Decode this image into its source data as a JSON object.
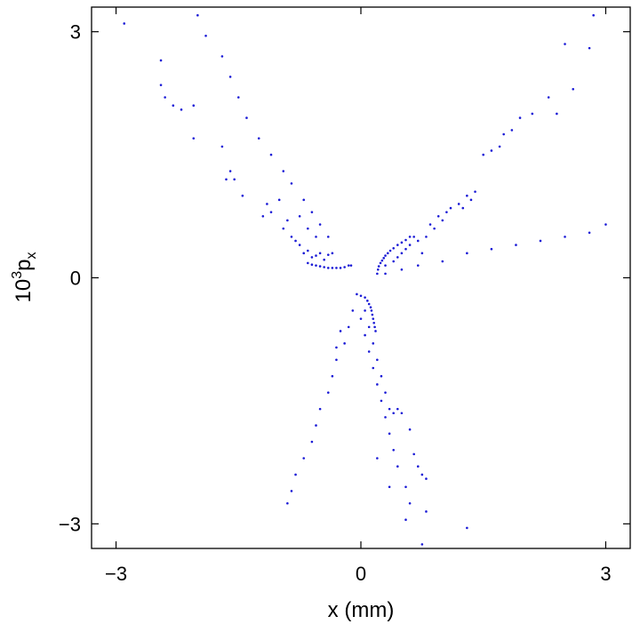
{
  "chart_data": {
    "type": "scatter",
    "xlabel": "x (mm)",
    "ylabel_parts": {
      "base": "10",
      "sup": "3",
      "main": "p",
      "sub": "x"
    },
    "xlim": [
      -3.3,
      3.3
    ],
    "ylim": [
      -3.3,
      3.3
    ],
    "xticks": [
      -3,
      0,
      3
    ],
    "yticks": [
      -3,
      0,
      3
    ],
    "xtick_labels": [
      "−3",
      "0",
      "3"
    ],
    "ytick_labels": [
      "−3",
      "0",
      "3"
    ],
    "grid": false,
    "legend": "none",
    "colors": {
      "points": "#1a1ad6",
      "frame": "#000000"
    },
    "series": [
      {
        "values_xy": [
          [
            -2.9,
            3.1
          ],
          [
            -2.0,
            3.2
          ],
          [
            -1.9,
            2.95
          ],
          [
            -1.7,
            2.7
          ],
          [
            -1.6,
            2.45
          ],
          [
            -1.5,
            2.2
          ],
          [
            -1.4,
            1.95
          ],
          [
            -1.25,
            1.7
          ],
          [
            -1.1,
            1.5
          ],
          [
            -0.95,
            1.3
          ],
          [
            -0.85,
            1.15
          ],
          [
            -0.7,
            0.95
          ],
          [
            -0.6,
            0.8
          ],
          [
            -0.5,
            0.65
          ],
          [
            -0.4,
            0.5
          ],
          [
            -2.45,
            2.65
          ],
          [
            -2.45,
            2.35
          ],
          [
            -2.4,
            2.2
          ],
          [
            -2.3,
            2.1
          ],
          [
            -2.2,
            2.05
          ],
          [
            -2.05,
            2.1
          ],
          [
            -2.05,
            1.7
          ],
          [
            -1.7,
            1.6
          ],
          [
            -1.6,
            1.3
          ],
          [
            -1.55,
            1.2
          ],
          [
            -1.65,
            1.2
          ],
          [
            -1.45,
            1.0
          ],
          [
            -1.15,
            0.9
          ],
          [
            -1.0,
            0.95
          ],
          [
            -1.2,
            0.75
          ],
          [
            -1.1,
            0.8
          ],
          [
            -0.9,
            0.7
          ],
          [
            -0.75,
            0.75
          ],
          [
            -0.65,
            0.6
          ],
          [
            -0.55,
            0.5
          ],
          [
            -0.95,
            0.6
          ],
          [
            -0.85,
            0.5
          ],
          [
            -0.75,
            0.4
          ],
          [
            -0.65,
            0.33
          ],
          [
            -0.55,
            0.27
          ],
          [
            -0.45,
            0.22
          ],
          [
            -0.8,
            0.45
          ],
          [
            -0.7,
            0.3
          ],
          [
            -0.6,
            0.25
          ],
          [
            -0.5,
            0.3
          ],
          [
            -0.4,
            0.28
          ],
          [
            -0.35,
            0.3
          ],
          [
            -0.65,
            0.18
          ],
          [
            -0.6,
            0.16
          ],
          [
            -0.55,
            0.15
          ],
          [
            -0.5,
            0.14
          ],
          [
            -0.45,
            0.13
          ],
          [
            -0.4,
            0.12
          ],
          [
            -0.35,
            0.12
          ],
          [
            -0.3,
            0.12
          ],
          [
            -0.25,
            0.12
          ],
          [
            -0.2,
            0.13
          ],
          [
            -0.15,
            0.15
          ],
          [
            -0.12,
            0.15
          ],
          [
            0.2,
            0.05
          ],
          [
            0.21,
            0.1
          ],
          [
            0.22,
            0.14
          ],
          [
            0.24,
            0.18
          ],
          [
            0.26,
            0.21
          ],
          [
            0.28,
            0.24
          ],
          [
            0.3,
            0.27
          ],
          [
            0.33,
            0.3
          ],
          [
            0.36,
            0.33
          ],
          [
            0.4,
            0.36
          ],
          [
            0.45,
            0.4
          ],
          [
            0.5,
            0.43
          ],
          [
            0.55,
            0.46
          ],
          [
            0.6,
            0.5
          ],
          [
            0.3,
            0.05
          ],
          [
            0.5,
            0.1
          ],
          [
            0.7,
            0.15
          ],
          [
            1.0,
            0.2
          ],
          [
            1.3,
            0.3
          ],
          [
            1.6,
            0.35
          ],
          [
            1.9,
            0.4
          ],
          [
            2.2,
            0.45
          ],
          [
            2.5,
            0.5
          ],
          [
            2.8,
            0.55
          ],
          [
            3.0,
            0.65
          ],
          [
            0.4,
            0.2
          ],
          [
            0.5,
            0.3
          ],
          [
            0.6,
            0.4
          ],
          [
            0.7,
            0.45
          ],
          [
            0.8,
            0.5
          ],
          [
            0.9,
            0.6
          ],
          [
            1.0,
            0.7
          ],
          [
            1.05,
            0.8
          ],
          [
            1.2,
            0.9
          ],
          [
            1.3,
            1.0
          ],
          [
            1.4,
            1.05
          ],
          [
            1.5,
            1.5
          ],
          [
            1.6,
            1.55
          ],
          [
            1.7,
            1.6
          ],
          [
            1.75,
            1.75
          ],
          [
            1.85,
            1.8
          ],
          [
            1.95,
            1.95
          ],
          [
            2.1,
            2.0
          ],
          [
            2.3,
            2.2
          ],
          [
            2.4,
            2.0
          ],
          [
            2.6,
            2.3
          ],
          [
            2.5,
            2.85
          ],
          [
            2.8,
            2.8
          ],
          [
            2.85,
            3.2
          ],
          [
            0.3,
            0.15
          ],
          [
            0.45,
            0.25
          ],
          [
            0.55,
            0.35
          ],
          [
            0.65,
            0.5
          ],
          [
            0.75,
            0.3
          ],
          [
            0.85,
            0.65
          ],
          [
            0.95,
            0.75
          ],
          [
            1.1,
            0.85
          ],
          [
            1.25,
            0.85
          ],
          [
            1.35,
            0.95
          ],
          [
            -0.05,
            -0.2
          ],
          [
            0.0,
            -0.22
          ],
          [
            0.05,
            -0.24
          ],
          [
            0.08,
            -0.28
          ],
          [
            0.1,
            -0.32
          ],
          [
            0.12,
            -0.36
          ],
          [
            0.13,
            -0.4
          ],
          [
            0.14,
            -0.45
          ],
          [
            0.15,
            -0.5
          ],
          [
            0.16,
            -0.55
          ],
          [
            0.17,
            -0.6
          ],
          [
            0.18,
            -0.65
          ],
          [
            -0.1,
            -0.4
          ],
          [
            -0.15,
            -0.6
          ],
          [
            -0.2,
            -0.8
          ],
          [
            -0.3,
            -1.0
          ],
          [
            -0.35,
            -1.2
          ],
          [
            -0.4,
            -1.4
          ],
          [
            -0.5,
            -1.6
          ],
          [
            -0.55,
            -1.8
          ],
          [
            -0.6,
            -2.0
          ],
          [
            -0.7,
            -2.2
          ],
          [
            -0.8,
            -2.4
          ],
          [
            -0.85,
            -2.6
          ],
          [
            -0.9,
            -2.75
          ],
          [
            0.0,
            -0.5
          ],
          [
            0.05,
            -0.7
          ],
          [
            0.1,
            -0.9
          ],
          [
            0.15,
            -1.1
          ],
          [
            0.2,
            -1.3
          ],
          [
            0.25,
            -1.5
          ],
          [
            0.3,
            -1.7
          ],
          [
            0.35,
            -1.9
          ],
          [
            0.4,
            -2.1
          ],
          [
            0.45,
            -2.3
          ],
          [
            0.55,
            -2.55
          ],
          [
            0.6,
            -2.75
          ],
          [
            0.05,
            -0.4
          ],
          [
            0.1,
            -0.6
          ],
          [
            0.15,
            -0.8
          ],
          [
            0.2,
            -1.0
          ],
          [
            0.25,
            -1.2
          ],
          [
            0.3,
            -1.4
          ],
          [
            0.35,
            -1.6
          ],
          [
            0.4,
            -1.65
          ],
          [
            0.45,
            -1.6
          ],
          [
            0.5,
            -1.65
          ],
          [
            0.6,
            -1.85
          ],
          [
            0.65,
            -2.15
          ],
          [
            0.7,
            -2.3
          ],
          [
            0.75,
            -2.4
          ],
          [
            0.8,
            -2.45
          ],
          [
            0.2,
            -2.2
          ],
          [
            0.35,
            -2.55
          ],
          [
            0.55,
            -2.95
          ],
          [
            0.8,
            -2.85
          ],
          [
            0.75,
            -3.25
          ],
          [
            1.3,
            -3.05
          ],
          [
            -0.3,
            -0.85
          ],
          [
            -0.25,
            -0.65
          ]
        ]
      }
    ]
  }
}
